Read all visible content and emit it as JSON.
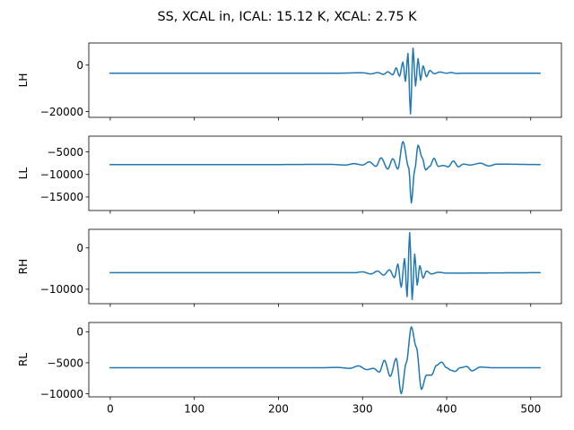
{
  "figure": {
    "title": "SS, XCAL in, ICAL: 15.12 K, XCAL: 2.75 K"
  },
  "colors": {
    "series": "#1f77b4",
    "axes": "#000000",
    "background": "#ffffff"
  },
  "chart_data": [
    {
      "type": "line",
      "ylabel": "LH",
      "xlim": [
        -25.5,
        536.5
      ],
      "ylim": [
        -22500,
        9500
      ],
      "yticks": [
        0,
        -20000
      ],
      "ytick_labels": [
        "0",
        "−20000"
      ],
      "show_xtick_labels": false,
      "baseline": -3500,
      "keypoints": [
        [
          0,
          -3500
        ],
        [
          270,
          -3500
        ],
        [
          300,
          -3300
        ],
        [
          310,
          -3800
        ],
        [
          318,
          -3200
        ],
        [
          325,
          -4000
        ],
        [
          330,
          -2900
        ],
        [
          336,
          -4200
        ],
        [
          340,
          -1200
        ],
        [
          344,
          -4800
        ],
        [
          348,
          1300
        ],
        [
          351,
          -7000
        ],
        [
          354,
          5000
        ],
        [
          357,
          -21000
        ],
        [
          360,
          7300
        ],
        [
          363,
          -9000
        ],
        [
          366,
          2800
        ],
        [
          369,
          -6500
        ],
        [
          372,
          -300
        ],
        [
          376,
          -5000
        ],
        [
          380,
          -2300
        ],
        [
          385,
          -3700
        ],
        [
          392,
          -3000
        ],
        [
          400,
          -3500
        ],
        [
          405,
          -3200
        ],
        [
          412,
          -3600
        ],
        [
          420,
          -3500
        ],
        [
          511,
          -3500
        ]
      ]
    },
    {
      "type": "line",
      "ylabel": "LL",
      "xlim": [
        -25.5,
        536.5
      ],
      "ylim": [
        -18000,
        -1500
      ],
      "yticks": [
        -5000,
        -10000,
        -15000
      ],
      "ytick_labels": [
        "−5000",
        "−10000",
        "−15000"
      ],
      "show_xtick_labels": false,
      "baseline": -7800,
      "keypoints": [
        [
          0,
          -7800
        ],
        [
          200,
          -7800
        ],
        [
          260,
          -7750
        ],
        [
          280,
          -7900
        ],
        [
          290,
          -7600
        ],
        [
          300,
          -7900
        ],
        [
          308,
          -7200
        ],
        [
          316,
          -8200
        ],
        [
          322,
          -6300
        ],
        [
          330,
          -8800
        ],
        [
          336,
          -6500
        ],
        [
          342,
          -8800
        ],
        [
          348,
          -2700
        ],
        [
          355,
          -8500
        ],
        [
          358,
          -16300
        ],
        [
          362,
          -9000
        ],
        [
          366,
          -3500
        ],
        [
          371,
          -6300
        ],
        [
          375,
          -9000
        ],
        [
          380,
          -8200
        ],
        [
          385,
          -6400
        ],
        [
          390,
          -8200
        ],
        [
          396,
          -8000
        ],
        [
          402,
          -8300
        ],
        [
          408,
          -7000
        ],
        [
          414,
          -8300
        ],
        [
          420,
          -7700
        ],
        [
          428,
          -7900
        ],
        [
          440,
          -7500
        ],
        [
          450,
          -8100
        ],
        [
          460,
          -7700
        ],
        [
          511,
          -7800
        ]
      ]
    },
    {
      "type": "line",
      "ylabel": "RH",
      "xlim": [
        -25.5,
        536.5
      ],
      "ylim": [
        -13500,
        4500
      ],
      "yticks": [
        0,
        -10000
      ],
      "ytick_labels": [
        "0",
        "−10000"
      ],
      "show_xtick_labels": false,
      "baseline": -6000,
      "keypoints": [
        [
          0,
          -6000
        ],
        [
          290,
          -6000
        ],
        [
          300,
          -5800
        ],
        [
          310,
          -6300
        ],
        [
          318,
          -5600
        ],
        [
          325,
          -6600
        ],
        [
          332,
          -5300
        ],
        [
          338,
          -7200
        ],
        [
          342,
          -3900
        ],
        [
          346,
          -9500
        ],
        [
          350,
          -2600
        ],
        [
          353,
          -11800
        ],
        [
          356,
          3700
        ],
        [
          359,
          -12500
        ],
        [
          362,
          -1500
        ],
        [
          365,
          -9000
        ],
        [
          368,
          -4300
        ],
        [
          372,
          -7300
        ],
        [
          376,
          -5600
        ],
        [
          382,
          -6300
        ],
        [
          390,
          -5900
        ],
        [
          400,
          -6100
        ],
        [
          511,
          -6000
        ]
      ]
    },
    {
      "type": "line",
      "ylabel": "RL",
      "xlim": [
        -25.5,
        536.5
      ],
      "ylim": [
        -10500,
        1500
      ],
      "yticks": [
        0,
        -5000,
        -10000
      ],
      "ytick_labels": [
        "0",
        "−5000",
        "−10000"
      ],
      "xticks": [
        0,
        100,
        200,
        300,
        400,
        500
      ],
      "xtick_labels": [
        "0",
        "100",
        "200",
        "300",
        "400",
        "500"
      ],
      "show_xtick_labels": true,
      "baseline": -5800,
      "keypoints": [
        [
          0,
          -5800
        ],
        [
          250,
          -5800
        ],
        [
          270,
          -5750
        ],
        [
          285,
          -5900
        ],
        [
          295,
          -5500
        ],
        [
          305,
          -6100
        ],
        [
          313,
          -5900
        ],
        [
          320,
          -6500
        ],
        [
          326,
          -4600
        ],
        [
          333,
          -7200
        ],
        [
          340,
          -4300
        ],
        [
          346,
          -10000
        ],
        [
          352,
          -5000
        ],
        [
          358,
          800
        ],
        [
          364,
          -2500
        ],
        [
          370,
          -9300
        ],
        [
          376,
          -7000
        ],
        [
          382,
          -7000
        ],
        [
          388,
          -5400
        ],
        [
          394,
          -4900
        ],
        [
          400,
          -5800
        ],
        [
          405,
          -6200
        ],
        [
          410,
          -6400
        ],
        [
          416,
          -5800
        ],
        [
          424,
          -5600
        ],
        [
          430,
          -6300
        ],
        [
          440,
          -5700
        ],
        [
          455,
          -5800
        ],
        [
          511,
          -5800
        ]
      ]
    }
  ]
}
